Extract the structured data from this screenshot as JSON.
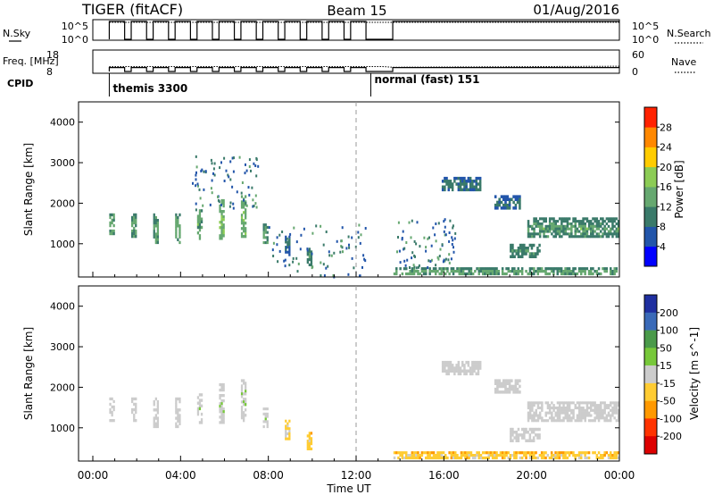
{
  "header": {
    "radar": "TIGER (fitACF)",
    "beam": "Beam 15",
    "date": "01/Aug/2016"
  },
  "time_axis": {
    "label": "Time UT",
    "ticks": [
      "00:00",
      "04:00",
      "08:00",
      "12:00",
      "16:00",
      "20:00",
      "00:00"
    ],
    "range_hours": [
      0,
      24
    ]
  },
  "chart_data": [
    {
      "type": "line",
      "panel": "nsky-nsearch",
      "left_label": "N.Sky",
      "right_label": "N.Search",
      "left_ticks": [
        "10^5",
        "10^0"
      ],
      "right_ticks": [
        "10^5",
        "10^0"
      ],
      "left_scale": "log",
      "right_series_style": "dotted",
      "nsky_low_high": [
        1,
        100000
      ],
      "themis_cycle_start_hours": [
        0.75,
        1.75,
        2.75,
        3.75,
        4.75,
        5.75,
        6.75,
        7.75,
        8.75,
        9.75,
        10.75,
        11.75
      ],
      "themis_cycle_high_fraction": 0.7,
      "normal_mode_from_hours": 13.67
    },
    {
      "type": "line",
      "panel": "freq-nave",
      "left_label": "Freq. [MHz]",
      "right_label": "Nave",
      "left_ticks": [
        "18",
        "8"
      ],
      "right_ticks": [
        "60",
        "0"
      ],
      "ylim_left": [
        8,
        18
      ],
      "ylim_right": [
        0,
        60
      ],
      "freq_mhz": 10,
      "nave_themis": 15,
      "nave_normal_start": 13,
      "nave_normal_end": 16
    },
    {
      "type": "table",
      "panel": "cpid",
      "label": "CPID",
      "segments": [
        {
          "name": "themis",
          "id": "3300",
          "start_hours": 0.75,
          "text": "themis 3300"
        },
        {
          "name": "normal (fast)",
          "id": "151",
          "start_hours": 12.67,
          "text": "normal (fast) 151"
        }
      ]
    },
    {
      "type": "heatmap",
      "panel": "power",
      "ylabel": "Slant Range [km]",
      "yticks": [
        1000,
        2000,
        3000,
        4000
      ],
      "ylim": [
        180,
        4500
      ],
      "cbar_label": "Power [dB]",
      "cbar_ticks": [
        4,
        8,
        12,
        16,
        20,
        24,
        28
      ],
      "cbar_colors": [
        "#0000ff",
        "#2255aa",
        "#3a7a6a",
        "#66a870",
        "#8ccc55",
        "#ffcc00",
        "#ff8800",
        "#ff2200"
      ],
      "dashed_line_hours": 12,
      "regions": [
        {
          "t": [
            0.75,
            1.0
          ],
          "r": [
            1150,
            1750
          ],
          "p": [
            10,
            15,
            18
          ]
        },
        {
          "t": [
            1.75,
            2.0
          ],
          "r": [
            1150,
            1750
          ],
          "p": [
            10,
            14,
            18
          ]
        },
        {
          "t": [
            2.75,
            3.0
          ],
          "r": [
            1000,
            1750
          ],
          "p": [
            10,
            15,
            18
          ]
        },
        {
          "t": [
            3.75,
            4.0
          ],
          "r": [
            1000,
            1750
          ],
          "p": [
            10,
            14,
            17
          ]
        },
        {
          "t": [
            4.75,
            5.0
          ],
          "r": [
            1100,
            1850
          ],
          "p": [
            10,
            15,
            19
          ]
        },
        {
          "t": [
            5.75,
            6.0
          ],
          "r": [
            1100,
            2100
          ],
          "p": [
            12,
            18,
            22
          ]
        },
        {
          "t": [
            6.75,
            7.0
          ],
          "r": [
            1150,
            2200
          ],
          "p": [
            12,
            17,
            21
          ]
        },
        {
          "t": [
            7.75,
            8.0
          ],
          "r": [
            1000,
            1500
          ],
          "p": [
            10,
            13,
            16
          ]
        },
        {
          "t": [
            8.75,
            9.0
          ],
          "r": [
            700,
            1200
          ],
          "p": [
            6,
            9,
            12
          ]
        },
        {
          "t": [
            9.75,
            10.0
          ],
          "r": [
            450,
            900
          ],
          "p": [
            8,
            12,
            16
          ]
        },
        {
          "t": [
            13.7,
            24.0
          ],
          "r": [
            230,
            420
          ],
          "p": [
            10,
            14,
            18
          ]
        },
        {
          "t": [
            15.9,
            17.7
          ],
          "r": [
            2300,
            2650
          ],
          "p": [
            6,
            9,
            14
          ]
        },
        {
          "t": [
            18.3,
            19.5
          ],
          "r": [
            1850,
            2200
          ],
          "p": [
            6,
            9,
            12
          ]
        },
        {
          "t": [
            19.8,
            24.0
          ],
          "r": [
            1150,
            1650
          ],
          "p": [
            8,
            12,
            18
          ]
        },
        {
          "t": [
            19.0,
            20.4
          ],
          "r": [
            650,
            1000
          ],
          "p": [
            8,
            12,
            16
          ]
        }
      ],
      "scatter_regions": [
        {
          "t": [
            13.7,
            16.5
          ],
          "r": [
            400,
            1700
          ]
        },
        {
          "t": [
            4.5,
            7.5
          ],
          "r": [
            1800,
            3200
          ]
        },
        {
          "t": [
            8.0,
            12.5
          ],
          "r": [
            180,
            1500
          ]
        }
      ]
    },
    {
      "type": "heatmap",
      "panel": "velocity",
      "ylabel": "Slant Range [km]",
      "yticks": [
        1000,
        2000,
        3000,
        4000
      ],
      "ylim": [
        180,
        4500
      ],
      "cbar_label": "Velocity [m s^-1]",
      "cbar_ticks": [
        200,
        100,
        50,
        15,
        -15,
        -50,
        -100,
        -200
      ],
      "cbar_colors": [
        "#1f2fa0",
        "#3a6ab8",
        "#4a9a4a",
        "#77c83a",
        "#cccccc",
        "#ffcc33",
        "#ff9900",
        "#ff3300",
        "#dd0000"
      ],
      "dashed_line_hours": 12,
      "regions": [
        {
          "t": [
            0.75,
            1.0
          ],
          "r": [
            1150,
            1750
          ],
          "v": [
            -10,
            0,
            10
          ]
        },
        {
          "t": [
            1.75,
            2.0
          ],
          "r": [
            1150,
            1750
          ],
          "v": [
            -10,
            0,
            10
          ]
        },
        {
          "t": [
            2.75,
            3.0
          ],
          "r": [
            1000,
            1750
          ],
          "v": [
            -10,
            0,
            10
          ]
        },
        {
          "t": [
            3.75,
            4.0
          ],
          "r": [
            1000,
            1750
          ],
          "v": [
            -10,
            0,
            10
          ]
        },
        {
          "t": [
            4.75,
            5.0
          ],
          "r": [
            1100,
            1850
          ],
          "v": [
            -10,
            0,
            20
          ]
        },
        {
          "t": [
            5.75,
            6.0
          ],
          "r": [
            1100,
            2100
          ],
          "v": [
            -10,
            0,
            30
          ]
        },
        {
          "t": [
            6.75,
            7.0
          ],
          "r": [
            1150,
            2200
          ],
          "v": [
            -10,
            10,
            40
          ]
        },
        {
          "t": [
            7.75,
            8.0
          ],
          "r": [
            1000,
            1500
          ],
          "v": [
            -10,
            10,
            30
          ]
        },
        {
          "t": [
            8.75,
            9.0
          ],
          "r": [
            700,
            1200
          ],
          "v": [
            -30,
            0,
            20
          ]
        },
        {
          "t": [
            9.75,
            10.0
          ],
          "r": [
            450,
            900
          ],
          "v": [
            -60,
            -20,
            10
          ]
        },
        {
          "t": [
            13.7,
            24.0
          ],
          "r": [
            230,
            420
          ],
          "v": [
            -60,
            -20,
            20
          ]
        },
        {
          "t": [
            15.9,
            17.7
          ],
          "r": [
            2300,
            2650
          ],
          "v": [
            -10,
            0,
            10
          ]
        },
        {
          "t": [
            18.3,
            19.5
          ],
          "r": [
            1850,
            2200
          ],
          "v": [
            -10,
            0,
            10
          ]
        },
        {
          "t": [
            19.8,
            24.0
          ],
          "r": [
            1150,
            1650
          ],
          "v": [
            -10,
            0,
            10
          ]
        },
        {
          "t": [
            19.0,
            20.4
          ],
          "r": [
            650,
            1000
          ],
          "v": [
            -10,
            0,
            10
          ]
        }
      ]
    }
  ]
}
